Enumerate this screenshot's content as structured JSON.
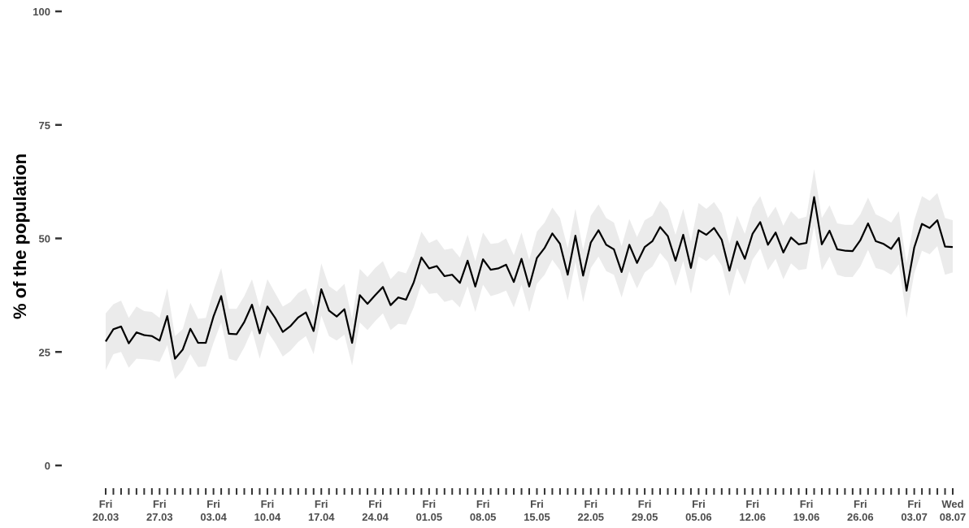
{
  "chart_data": {
    "type": "line",
    "title": "",
    "xlabel": "",
    "ylabel": "% of the population",
    "ylim": [
      0,
      100
    ],
    "yticks": [
      0,
      25,
      50,
      75,
      100
    ],
    "grid": false,
    "x_start": "2020-03-20",
    "x_end": "2020-07-08",
    "xtick_labels": [
      {
        "date": "2020-03-20",
        "weekday": "Fri",
        "label": "20.03"
      },
      {
        "date": "2020-03-27",
        "weekday": "Fri",
        "label": "27.03"
      },
      {
        "date": "2020-04-03",
        "weekday": "Fri",
        "label": "03.04"
      },
      {
        "date": "2020-04-10",
        "weekday": "Fri",
        "label": "10.04"
      },
      {
        "date": "2020-04-17",
        "weekday": "Fri",
        "label": "17.04"
      },
      {
        "date": "2020-04-24",
        "weekday": "Fri",
        "label": "24.04"
      },
      {
        "date": "2020-05-01",
        "weekday": "Fri",
        "label": "01.05"
      },
      {
        "date": "2020-05-08",
        "weekday": "Fri",
        "label": "08.05"
      },
      {
        "date": "2020-05-15",
        "weekday": "Fri",
        "label": "15.05"
      },
      {
        "date": "2020-05-22",
        "weekday": "Fri",
        "label": "22.05"
      },
      {
        "date": "2020-05-29",
        "weekday": "Fri",
        "label": "29.05"
      },
      {
        "date": "2020-06-05",
        "weekday": "Fri",
        "label": "05.06"
      },
      {
        "date": "2020-06-12",
        "weekday": "Fri",
        "label": "12.06"
      },
      {
        "date": "2020-06-19",
        "weekday": "Fri",
        "label": "19.06"
      },
      {
        "date": "2020-06-26",
        "weekday": "Fri",
        "label": "26.06"
      },
      {
        "date": "2020-07-03",
        "weekday": "Fri",
        "label": "03.07"
      },
      {
        "date": "2020-07-08",
        "weekday": "Wed",
        "label": "08.07"
      }
    ],
    "series": [
      {
        "color": "#000000",
        "band_color": "#ebebeb",
        "values": [
          27.3,
          30.0,
          30.6,
          26.9,
          29.3,
          28.7,
          28.5,
          27.5,
          32.9,
          23.5,
          25.5,
          30.1,
          27.0,
          27.0,
          32.8,
          37.3,
          29.0,
          28.9,
          31.6,
          35.4,
          29.1,
          35.0,
          32.5,
          29.4,
          30.7,
          32.6,
          33.7,
          29.6,
          38.8,
          34.1,
          32.8,
          34.4,
          27.0,
          37.5,
          35.6,
          37.5,
          39.3,
          35.3,
          37.0,
          36.5,
          40.3,
          45.8,
          43.4,
          43.9,
          41.7,
          42.0,
          40.2,
          45.1,
          39.4,
          45.4,
          43.1,
          43.4,
          44.2,
          40.4,
          45.5,
          39.4,
          45.7,
          47.9,
          51.1,
          48.8,
          42.0,
          50.6,
          41.8,
          49.1,
          51.8,
          48.6,
          47.6,
          42.6,
          48.6,
          44.6,
          48.1,
          49.4,
          52.5,
          50.5,
          45.1,
          50.8,
          43.5,
          51.8,
          50.8,
          52.3,
          49.7,
          42.9,
          49.3,
          45.5,
          51.0,
          53.6,
          48.6,
          51.3,
          46.9,
          50.2,
          48.7,
          49.0,
          59.1,
          48.7,
          51.7,
          47.6,
          47.3,
          47.2,
          49.6,
          53.3,
          49.4,
          48.8,
          47.7,
          50.1,
          38.5,
          48.0,
          53.2,
          52.3,
          54.0,
          48.2,
          48.1
        ],
        "lower": [
          21.0,
          24.5,
          25.0,
          21.5,
          23.5,
          23.4,
          23.2,
          22.8,
          26.5,
          19.0,
          21.0,
          24.5,
          21.7,
          21.8,
          27.0,
          31.5,
          23.5,
          23.0,
          26.0,
          29.8,
          23.5,
          29.5,
          27.0,
          24.0,
          25.3,
          27.2,
          28.5,
          24.5,
          33.0,
          28.5,
          27.5,
          28.8,
          22.0,
          31.5,
          29.8,
          31.8,
          33.5,
          29.8,
          31.2,
          31.0,
          34.8,
          40.0,
          37.8,
          38.0,
          36.0,
          36.5,
          34.8,
          39.5,
          33.8,
          39.8,
          37.3,
          37.8,
          38.5,
          34.8,
          39.8,
          33.8,
          40.0,
          42.0,
          45.3,
          43.0,
          36.3,
          44.8,
          36.0,
          43.5,
          46.0,
          42.8,
          42.0,
          37.0,
          42.8,
          39.0,
          42.5,
          43.8,
          46.8,
          44.8,
          39.5,
          45.0,
          37.8,
          46.0,
          45.0,
          46.5,
          44.0,
          37.3,
          43.5,
          39.8,
          45.3,
          47.8,
          43.0,
          45.5,
          41.0,
          44.5,
          43.0,
          43.3,
          52.8,
          43.0,
          46.0,
          42.0,
          41.5,
          41.5,
          43.8,
          47.5,
          43.5,
          43.0,
          42.0,
          44.3,
          32.5,
          42.3,
          47.3,
          46.5,
          48.3,
          42.0,
          42.5
        ],
        "upper": [
          33.5,
          35.5,
          36.3,
          32.5,
          35.0,
          34.0,
          33.8,
          32.5,
          39.0,
          28.5,
          30.0,
          35.8,
          32.3,
          32.5,
          38.5,
          43.5,
          34.5,
          34.5,
          37.3,
          41.0,
          34.8,
          41.0,
          38.0,
          35.0,
          36.0,
          38.0,
          39.0,
          35.0,
          44.5,
          39.5,
          38.3,
          40.0,
          32.3,
          43.3,
          41.5,
          43.5,
          45.0,
          41.0,
          42.8,
          42.3,
          46.0,
          51.5,
          49.0,
          49.8,
          47.5,
          47.8,
          45.8,
          50.8,
          45.0,
          51.3,
          48.8,
          49.0,
          50.0,
          46.3,
          51.3,
          45.3,
          51.5,
          53.5,
          56.8,
          54.5,
          47.8,
          56.5,
          47.5,
          55.0,
          57.5,
          54.5,
          53.5,
          48.3,
          54.3,
          50.3,
          54.0,
          55.0,
          58.3,
          56.3,
          50.8,
          56.5,
          49.3,
          57.8,
          56.5,
          58.0,
          55.5,
          48.8,
          55.0,
          51.0,
          56.8,
          59.3,
          54.5,
          57.0,
          52.8,
          56.0,
          54.3,
          54.8,
          65.3,
          54.5,
          57.3,
          53.3,
          53.0,
          53.0,
          55.3,
          59.0,
          55.3,
          54.5,
          53.5,
          56.0,
          44.5,
          54.0,
          59.3,
          58.3,
          60.0,
          54.5,
          54.0
        ]
      }
    ]
  }
}
